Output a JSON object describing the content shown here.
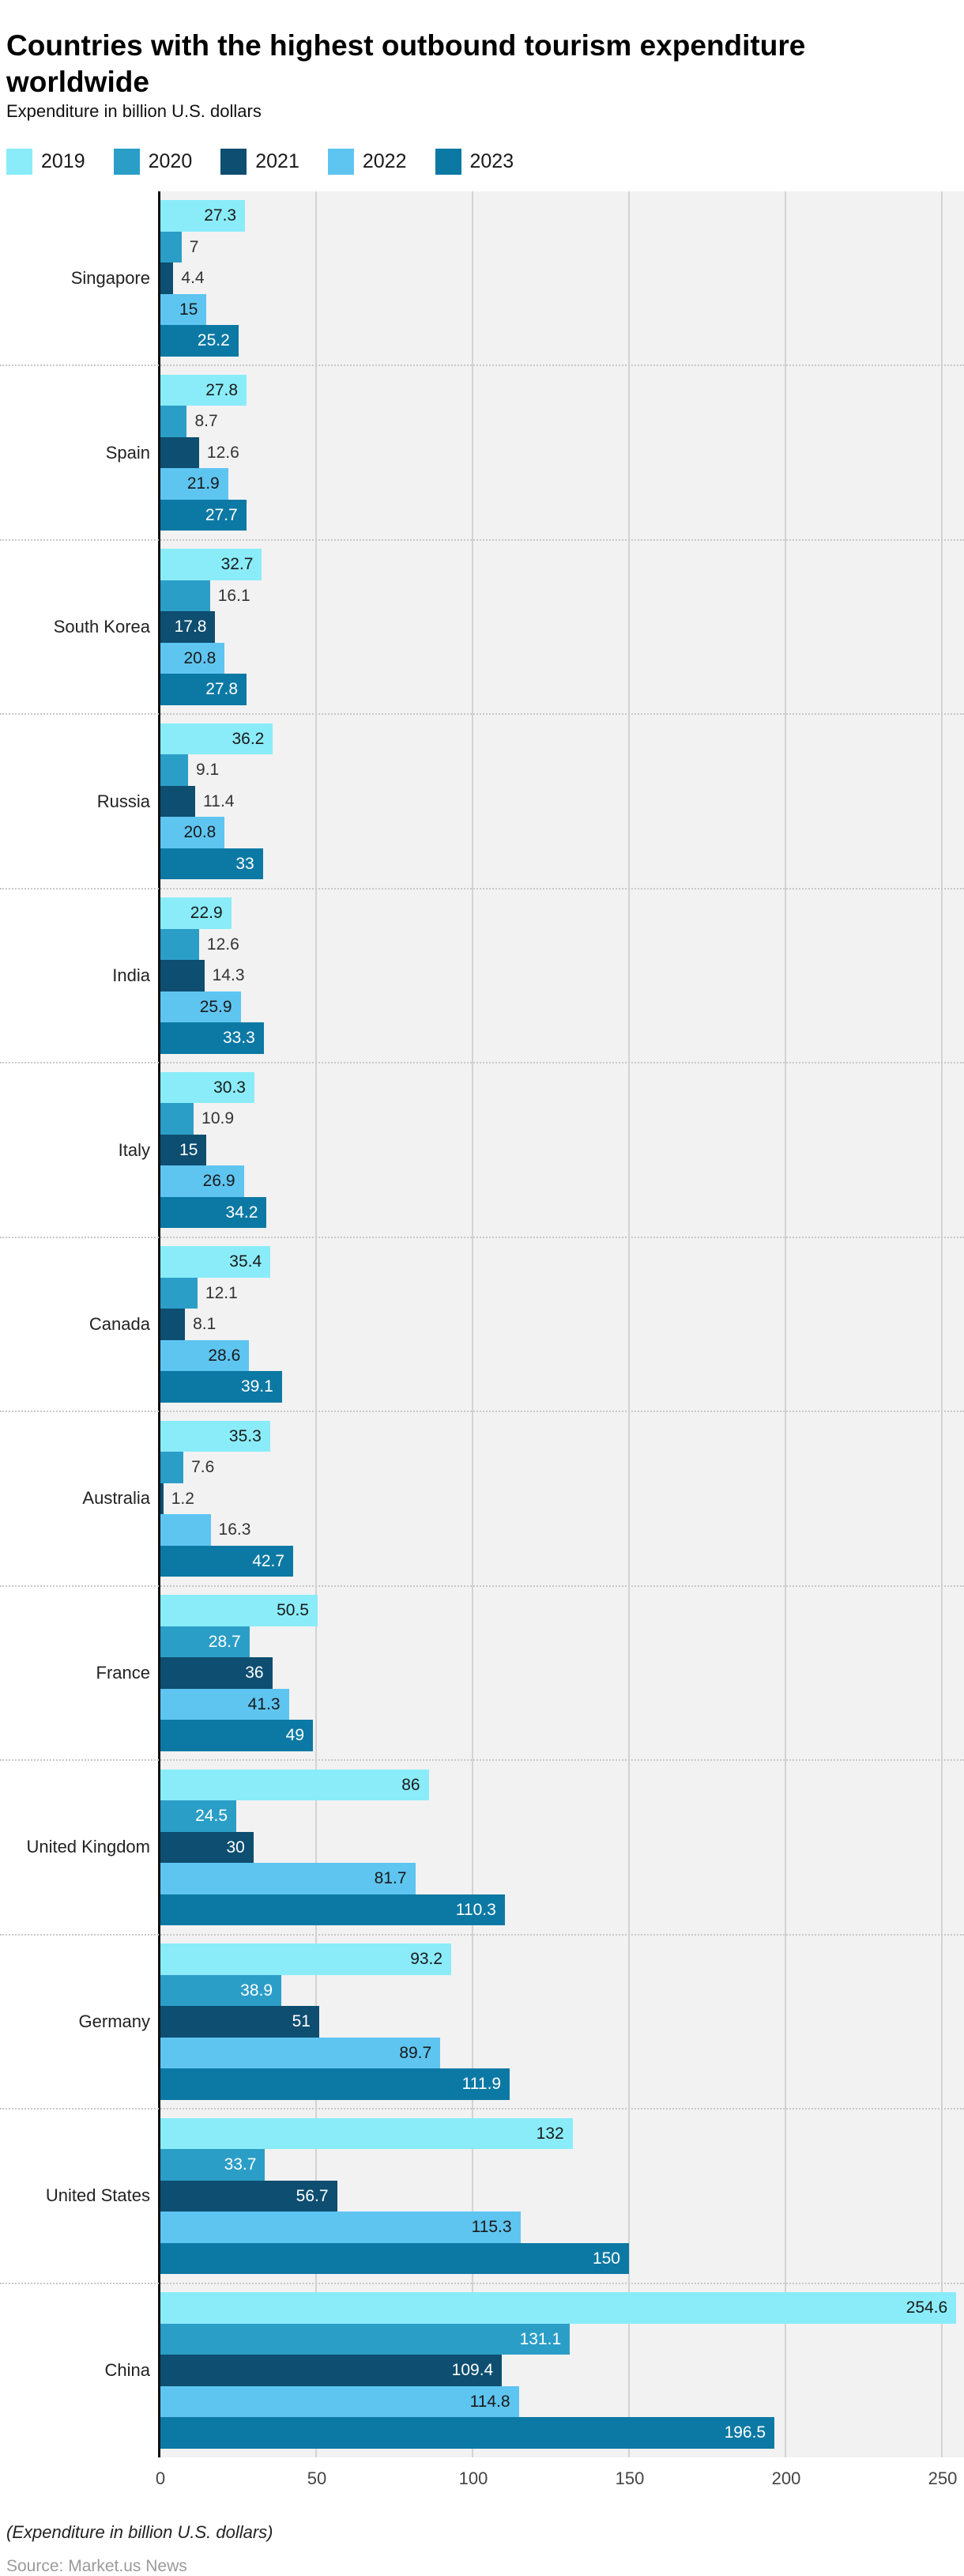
{
  "header": {
    "title": "Countries with the highest outbound tourism expenditure worldwide",
    "subtitle": "Expenditure in billion U.S. dollars"
  },
  "footer": {
    "note": "(Expenditure in billion U.S. dollars)",
    "source": "Source: Market.us News"
  },
  "chart_data": {
    "type": "bar",
    "orientation": "horizontal",
    "title": "Countries with the highest outbound tourism expenditure worldwide",
    "xlabel": "Expenditure in billion U.S. dollars",
    "xlim": [
      0,
      257
    ],
    "x_ticks": [
      0,
      50,
      100,
      150,
      200,
      250
    ],
    "grid": true,
    "legend_position": "top",
    "plot_background": "#F2F2F2",
    "series": [
      {
        "name": "2019",
        "color": "#8AECF9",
        "inside_label_color": "#1a1a1a"
      },
      {
        "name": "2020",
        "color": "#2B9EC7",
        "inside_label_color": "#ffffff"
      },
      {
        "name": "2021",
        "color": "#0E4E70",
        "inside_label_color": "#ffffff"
      },
      {
        "name": "2022",
        "color": "#5EC5F1",
        "inside_label_color": "#1a1a1a"
      },
      {
        "name": "2023",
        "color": "#0C79A4",
        "inside_label_color": "#ffffff"
      }
    ],
    "outside_label_color": "#333333",
    "groups": [
      {
        "country": "Singapore",
        "values": [
          27.3,
          7,
          4.4,
          15,
          25.2
        ],
        "labels": [
          "27.3",
          "7",
          "4.4",
          "15",
          "25.2"
        ],
        "inside": [
          true,
          false,
          false,
          true,
          true
        ]
      },
      {
        "country": "Spain",
        "values": [
          27.8,
          8.7,
          12.6,
          21.9,
          27.7
        ],
        "labels": [
          "27.8",
          "8.7",
          "12.6",
          "21.9",
          "27.7"
        ],
        "inside": [
          true,
          false,
          false,
          true,
          true
        ]
      },
      {
        "country": "South Korea",
        "values": [
          32.7,
          16.1,
          17.8,
          20.8,
          27.8
        ],
        "labels": [
          "32.7",
          "16.1",
          "17.8",
          "20.8",
          "27.8"
        ],
        "inside": [
          true,
          false,
          true,
          true,
          true
        ]
      },
      {
        "country": "Russia",
        "values": [
          36.2,
          9.1,
          11.4,
          20.8,
          33
        ],
        "labels": [
          "36.2",
          "9.1",
          "11.4",
          "20.8",
          "33"
        ],
        "inside": [
          true,
          false,
          false,
          true,
          true
        ]
      },
      {
        "country": "India",
        "values": [
          22.9,
          12.6,
          14.3,
          25.9,
          33.3
        ],
        "labels": [
          "22.9",
          "12.6",
          "14.3",
          "25.9",
          "33.3"
        ],
        "inside": [
          true,
          false,
          false,
          true,
          true
        ]
      },
      {
        "country": "Italy",
        "values": [
          30.3,
          10.9,
          15,
          26.9,
          34.2
        ],
        "labels": [
          "30.3",
          "10.9",
          "15",
          "26.9",
          "34.2"
        ],
        "inside": [
          true,
          false,
          true,
          true,
          true
        ]
      },
      {
        "country": "Canada",
        "values": [
          35.4,
          12.1,
          8.1,
          28.6,
          39.1
        ],
        "labels": [
          "35.4",
          "12.1",
          "8.1",
          "28.6",
          "39.1"
        ],
        "inside": [
          true,
          false,
          false,
          true,
          true
        ]
      },
      {
        "country": "Australia",
        "values": [
          35.3,
          7.6,
          1.2,
          16.3,
          42.7
        ],
        "labels": [
          "35.3",
          "7.6",
          "1.2",
          "16.3",
          "42.7"
        ],
        "inside": [
          true,
          false,
          false,
          false,
          true
        ]
      },
      {
        "country": "France",
        "values": [
          50.5,
          28.7,
          36,
          41.3,
          49
        ],
        "labels": [
          "50.5",
          "28.7",
          "36",
          "41.3",
          "49"
        ],
        "inside": [
          true,
          true,
          true,
          true,
          true
        ]
      },
      {
        "country": "United Kingdom",
        "values": [
          86,
          24.5,
          30,
          81.7,
          110.3
        ],
        "labels": [
          "86",
          "24.5",
          "30",
          "81.7",
          "110.3"
        ],
        "inside": [
          true,
          true,
          true,
          true,
          true
        ]
      },
      {
        "country": "Germany",
        "values": [
          93.2,
          38.9,
          51,
          89.7,
          111.9
        ],
        "labels": [
          "93.2",
          "38.9",
          "51",
          "89.7",
          "111.9"
        ],
        "inside": [
          true,
          true,
          true,
          true,
          true
        ]
      },
      {
        "country": "United States",
        "values": [
          132,
          33.7,
          56.7,
          115.3,
          150
        ],
        "labels": [
          "132",
          "33.7",
          "56.7",
          "115.3",
          "150"
        ],
        "inside": [
          true,
          true,
          true,
          true,
          true
        ]
      },
      {
        "country": "China",
        "values": [
          254.6,
          131.1,
          109.4,
          114.8,
          196.5
        ],
        "labels": [
          "254.6",
          "131.1",
          "109.4",
          "114.8",
          "196.5"
        ],
        "inside": [
          true,
          true,
          true,
          true,
          true
        ]
      }
    ]
  }
}
